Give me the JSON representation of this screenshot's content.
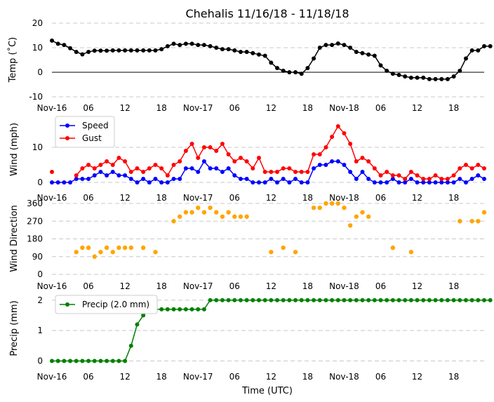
{
  "chart_data": {
    "title": "Chehalis 11/16/18 - 11/18/18",
    "xlabel": "Time (UTC)",
    "type": "line",
    "x_ticks": [
      "Nov-16",
      "06",
      "12",
      "18",
      "Nov-17",
      "06",
      "12",
      "18",
      "Nov-18",
      "06",
      "12",
      "18"
    ],
    "x_step_hours": 1,
    "panels": [
      {
        "id": "temp",
        "ylabel": "Temp (˚C)",
        "ylim": [
          -10,
          20
        ],
        "yticks": [
          "20",
          "10",
          "0",
          "-10"
        ],
        "ytick_values": [
          20,
          10,
          0,
          -10
        ],
        "grid": true,
        "zero_line": true,
        "legend": null,
        "series": [
          {
            "name": "",
            "color": "#000000",
            "start_hour": 0,
            "values": [
              12.9,
              11.6,
              11.1,
              9.8,
              8.3,
              7.3,
              8.3,
              8.8,
              8.8,
              8.8,
              8.9,
              8.9,
              8.9,
              8.9,
              8.9,
              8.9,
              8.9,
              8.9,
              9.4,
              10.6,
              11.6,
              11.1,
              11.6,
              11.6,
              11.1,
              11.1,
              10.6,
              10.0,
              9.4,
              9.4,
              8.9,
              8.3,
              8.3,
              7.8,
              7.2,
              6.7,
              3.9,
              1.7,
              0.6,
              0.0,
              0.0,
              -0.6,
              1.7,
              5.6,
              10.0,
              11.1,
              11.1,
              11.7,
              11.1,
              10.0,
              8.3,
              7.8,
              7.2,
              6.7,
              2.8,
              0.6,
              -0.6,
              -1.1,
              -1.7,
              -2.2,
              -2.2,
              -2.2,
              -2.8,
              -2.8,
              -2.8,
              -2.8,
              -1.7,
              0.6,
              5.6,
              8.9,
              8.9,
              10.6,
              10.6
            ]
          }
        ]
      },
      {
        "id": "wind",
        "ylabel": "Wind (mph)",
        "ylim": [
          -1,
          18
        ],
        "yticks": [
          "10",
          "0"
        ],
        "ytick_values": [
          10,
          0
        ],
        "grid": true,
        "zero_line": false,
        "legend": "upper-left",
        "series": [
          {
            "name": "Speed",
            "color": "#0000ff",
            "start_hour": 0,
            "values": [
              0,
              0,
              0,
              0,
              1,
              1,
              1,
              2,
              3,
              2,
              3,
              2,
              2,
              1,
              0,
              1,
              0,
              1,
              0,
              0,
              1,
              1,
              4,
              4,
              3,
              6,
              4,
              4,
              3,
              4,
              2,
              1,
              1,
              0,
              0,
              0,
              1,
              0,
              1,
              0,
              1,
              0,
              0,
              4,
              5,
              5,
              6,
              6,
              5,
              3,
              1,
              3,
              1,
              0,
              0,
              0,
              1,
              0,
              0,
              1,
              0,
              0,
              0,
              0,
              0,
              0,
              0,
              1,
              0,
              1,
              2,
              1
            ]
          },
          {
            "name": "Gust",
            "color": "#ff0000",
            "start_hour": 0,
            "values": [
              3,
              null,
              null,
              null,
              2,
              4,
              5,
              4,
              5,
              6,
              5,
              7,
              6,
              3,
              4,
              3,
              4,
              5,
              4,
              2,
              5,
              6,
              9,
              11,
              7,
              10,
              10,
              9,
              11,
              8,
              6,
              7,
              6,
              4,
              7,
              3,
              3,
              3,
              4,
              4,
              3,
              3,
              3,
              8,
              8,
              10,
              13,
              16,
              14,
              11,
              6,
              7,
              6,
              4,
              2,
              3,
              2,
              2,
              1,
              3,
              2,
              1,
              1,
              2,
              1,
              1,
              2,
              4,
              5,
              4,
              5,
              4
            ]
          }
        ]
      },
      {
        "id": "dir",
        "ylabel": "Wind Direction",
        "ylim": [
          0,
          360
        ],
        "yticks": [
          "360",
          "270",
          "180",
          "90",
          "0"
        ],
        "ytick_values": [
          360,
          270,
          180,
          90,
          0
        ],
        "grid": true,
        "zero_line": false,
        "legend": null,
        "series": [
          {
            "name": "",
            "color": "#ffa500",
            "scatter": true,
            "points": [
              [
                4,
                113
              ],
              [
                5,
                135
              ],
              [
                6,
                135
              ],
              [
                7,
                90
              ],
              [
                8,
                113
              ],
              [
                9,
                135
              ],
              [
                10,
                113
              ],
              [
                11,
                135
              ],
              [
                12,
                135
              ],
              [
                13,
                135
              ],
              [
                15,
                135
              ],
              [
                17,
                113
              ],
              [
                20,
                270
              ],
              [
                21,
                293
              ],
              [
                22,
                315
              ],
              [
                23,
                315
              ],
              [
                24,
                338
              ],
              [
                25,
                315
              ],
              [
                26,
                338
              ],
              [
                27,
                315
              ],
              [
                28,
                293
              ],
              [
                29,
                315
              ],
              [
                30,
                293
              ],
              [
                31,
                293
              ],
              [
                32,
                293
              ],
              [
                36,
                113
              ],
              [
                38,
                135
              ],
              [
                40,
                113
              ],
              [
                43,
                338
              ],
              [
                44,
                338
              ],
              [
                45,
                360
              ],
              [
                46,
                360
              ],
              [
                47,
                360
              ],
              [
                48,
                338
              ],
              [
                49,
                248
              ],
              [
                50,
                293
              ],
              [
                51,
                315
              ],
              [
                52,
                293
              ],
              [
                56,
                135
              ],
              [
                59,
                113
              ],
              [
                67,
                270
              ],
              [
                69,
                270
              ],
              [
                70,
                270
              ],
              [
                71,
                315
              ]
            ]
          }
        ]
      },
      {
        "id": "precip",
        "ylabel": "Precip (mm)",
        "ylim": [
          -0.15,
          2.25
        ],
        "yticks": [
          "2",
          "1",
          "0"
        ],
        "ytick_values": [
          2,
          1,
          0
        ],
        "grid": true,
        "zero_line": false,
        "legend": "upper-left",
        "series": [
          {
            "name": "Precip (2.0 mm)",
            "color": "#008000",
            "start_hour": 0,
            "values": [
              0,
              0,
              0,
              0,
              0,
              0,
              0,
              0,
              0,
              0,
              0,
              0,
              0,
              0.5,
              1.2,
              1.5,
              1.7,
              1.7,
              1.7,
              1.7,
              1.7,
              1.7,
              1.7,
              1.7,
              1.7,
              1.7,
              2,
              2,
              2,
              2,
              2,
              2,
              2,
              2,
              2,
              2,
              2,
              2,
              2,
              2,
              2,
              2,
              2,
              2,
              2,
              2,
              2,
              2,
              2,
              2,
              2,
              2,
              2,
              2,
              2,
              2,
              2,
              2,
              2,
              2,
              2,
              2,
              2,
              2,
              2,
              2,
              2,
              2,
              2,
              2,
              2,
              2,
              2
            ]
          }
        ]
      }
    ]
  }
}
